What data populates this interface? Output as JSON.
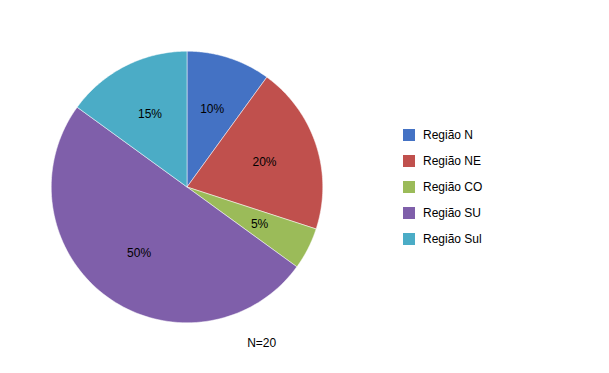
{
  "chart_data": {
    "type": "pie",
    "categories": [
      "Região N",
      "Região NE",
      "Região CO",
      "Região SU",
      "Região Sul"
    ],
    "values": [
      10,
      20,
      5,
      50,
      15
    ],
    "value_labels": [
      "10%",
      "20%",
      "5%",
      "50%",
      "15%"
    ],
    "colors": [
      "#4472C4",
      "#C0504D",
      "#9BBB59",
      "#7F5FAA",
      "#4BACC6"
    ],
    "data_labels": true,
    "annotation": "N=20",
    "legend": "right"
  }
}
